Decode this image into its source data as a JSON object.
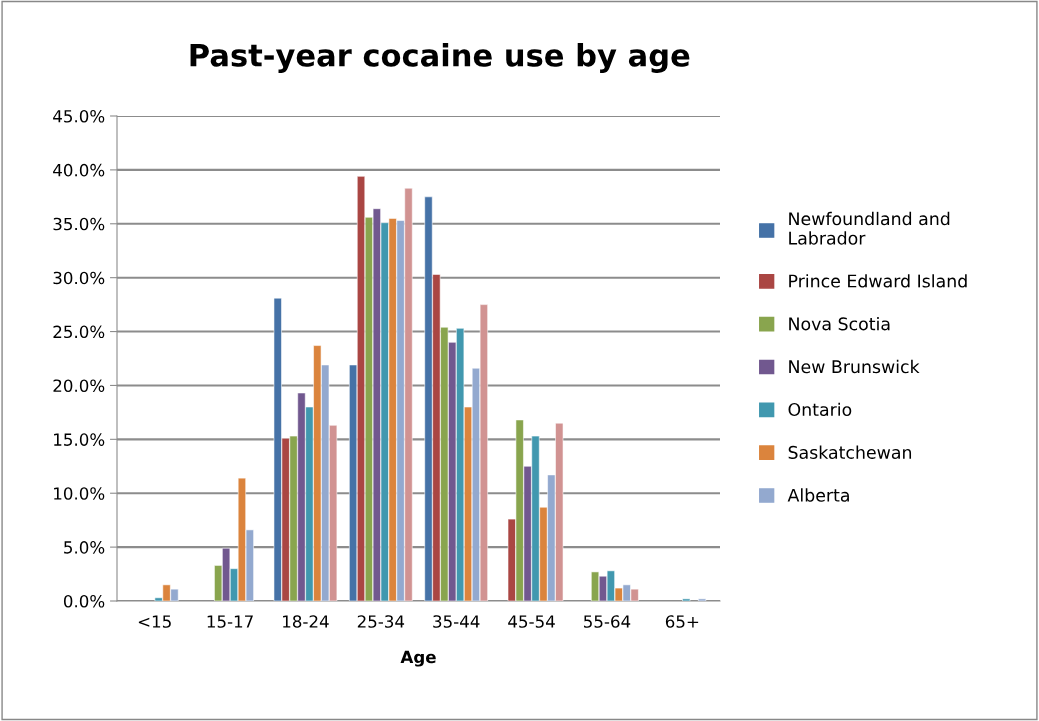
{
  "chart_data": {
    "type": "bar",
    "title": "Past-year cocaine use by age",
    "xlabel": "Age",
    "categories": [
      "<15",
      "15-17",
      "18-24",
      "25-34",
      "35-44",
      "45-54",
      "55-64",
      "65+"
    ],
    "series": [
      {
        "name": "Newfoundland and Labrador",
        "color": "#4572a7",
        "values": [
          null,
          null,
          28.1,
          21.9,
          37.5,
          null,
          null,
          null
        ]
      },
      {
        "name": "Prince Edward Island",
        "color": "#aa4643",
        "values": [
          null,
          null,
          15.1,
          39.4,
          30.3,
          7.6,
          null,
          null
        ]
      },
      {
        "name": "Nova Scotia",
        "color": "#89a54e",
        "values": [
          null,
          3.3,
          15.3,
          35.6,
          25.4,
          16.8,
          2.7,
          null
        ]
      },
      {
        "name": "New Brunswick",
        "color": "#71588f",
        "values": [
          null,
          4.9,
          19.3,
          36.4,
          24.0,
          12.5,
          2.3,
          null
        ]
      },
      {
        "name": "Ontario",
        "color": "#4198af",
        "values": [
          0.3,
          3.0,
          18.0,
          35.1,
          25.3,
          15.3,
          2.8,
          0.2
        ]
      },
      {
        "name": "Saskatchewan",
        "color": "#db843d",
        "values": [
          1.5,
          11.4,
          23.7,
          35.5,
          18.0,
          8.7,
          1.2,
          null
        ]
      },
      {
        "name": "Alberta",
        "color": "#93a9cf",
        "values": [
          1.1,
          6.6,
          21.9,
          35.3,
          21.6,
          11.7,
          1.5,
          0.2
        ]
      },
      {
        "color": "#d19392",
        "values": [
          null,
          null,
          16.3,
          38.3,
          27.5,
          16.5,
          1.1,
          null
        ]
      }
    ],
    "ylim": [
      0,
      45
    ],
    "yticks": [
      {
        "value": 0,
        "label": "0.0%"
      },
      {
        "value": 5,
        "label": "5.0%"
      },
      {
        "value": 10,
        "label": "10.0%"
      },
      {
        "value": 15,
        "label": "15.0%"
      },
      {
        "value": 20,
        "label": "20.0%"
      },
      {
        "value": 25,
        "label": "25.0%"
      },
      {
        "value": 30,
        "label": "30.0%"
      },
      {
        "value": 35,
        "label": "35.0%"
      },
      {
        "value": 40,
        "label": "40.0%"
      },
      {
        "value": 45,
        "label": "45.0%"
      }
    ],
    "grid": "y",
    "legend": "right"
  }
}
